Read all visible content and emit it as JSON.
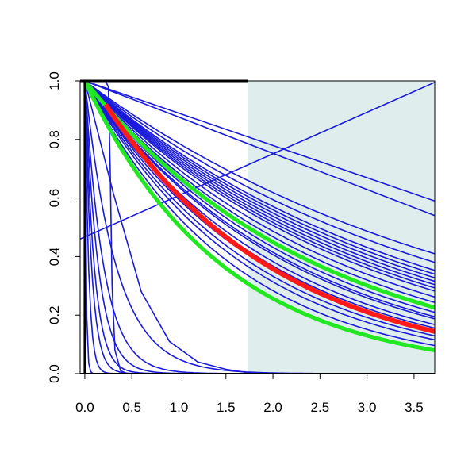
{
  "chart_data": {
    "type": "line",
    "title": "",
    "xlabel": "",
    "ylabel": "",
    "xlim": [
      -0.05,
      3.72
    ],
    "ylim": [
      0.0,
      1.0
    ],
    "x_ticks": [
      "0.0",
      "0.5",
      "1.0",
      "1.5",
      "2.0",
      "2.5",
      "3.0",
      "3.5"
    ],
    "y_ticks": [
      "0.0",
      "0.2",
      "0.4",
      "0.6",
      "0.8",
      "1.0"
    ],
    "grid": false,
    "legend": "none",
    "shaded_region": {
      "x_start": 1.73,
      "x_end": 3.72,
      "color": "#e0eded"
    },
    "colors": {
      "curves": "#1a1adb",
      "highlight": "#ff1a1a",
      "band": "#22e822",
      "axis": "#000000"
    },
    "curves": [
      {
        "kind": "exp",
        "rate": 0.24
      },
      {
        "kind": "exp",
        "rate": 0.26
      },
      {
        "kind": "exp",
        "rate": 0.28
      },
      {
        "kind": "exp",
        "rate": 0.29
      },
      {
        "kind": "exp",
        "rate": 0.3
      },
      {
        "kind": "exp",
        "rate": 0.31
      },
      {
        "kind": "exp",
        "rate": 0.32
      },
      {
        "kind": "exp",
        "rate": 0.33
      },
      {
        "kind": "exp",
        "rate": 0.34
      },
      {
        "kind": "exp",
        "rate": 0.36
      },
      {
        "kind": "exp",
        "rate": 0.38
      },
      {
        "kind": "exp",
        "rate": 0.4
      },
      {
        "kind": "exp",
        "rate": 0.42
      },
      {
        "kind": "exp",
        "rate": 0.44
      },
      {
        "kind": "exp",
        "rate": 0.45
      },
      {
        "kind": "exp",
        "rate": 0.48
      },
      {
        "kind": "exp",
        "rate": 0.5
      },
      {
        "kind": "exp",
        "rate": 0.52
      },
      {
        "kind": "exp",
        "rate": 0.55
      },
      {
        "kind": "exp",
        "rate": 0.58
      },
      {
        "kind": "exp",
        "rate": 0.63
      },
      {
        "kind": "exp",
        "rate": 0.68
      },
      {
        "kind": "exp",
        "rate": 3.0
      },
      {
        "kind": "exp",
        "rate": 5.0
      },
      {
        "kind": "exp",
        "rate": 7.0
      },
      {
        "kind": "exp",
        "rate": 10.0
      },
      {
        "kind": "exp",
        "rate": 14.0
      },
      {
        "kind": "exp",
        "rate": 25.0
      },
      {
        "kind": "exp",
        "rate": 80.0
      },
      {
        "kind": "points",
        "x": [
          0,
          0.3,
          0.6,
          0.9,
          1.2,
          1.5,
          1.8
        ],
        "y": [
          1.0,
          0.62,
          0.28,
          0.11,
          0.04,
          0.015,
          0.0
        ]
      },
      {
        "kind": "points",
        "x": [
          0.0,
          0.05,
          0.22,
          0.25,
          0.27,
          0.29,
          0.32,
          0.38,
          0.45,
          3.72
        ],
        "y": [
          1.0,
          1.0,
          1.0,
          0.98,
          0.7,
          0.3,
          0.08,
          0.01,
          0.0,
          0.0
        ]
      },
      {
        "kind": "points",
        "x": [
          0,
          3.72
        ],
        "y": [
          1.0,
          0.59
        ]
      },
      {
        "kind": "points",
        "x": [
          0,
          3.72
        ],
        "y": [
          1.0,
          0.54
        ]
      },
      {
        "kind": "points",
        "x": [
          -0.05,
          3.72
        ],
        "y": [
          0.46,
          0.995
        ]
      }
    ],
    "highlight_series": [
      {
        "kind": "exp",
        "rate": 0.53,
        "start": 0.22,
        "start_y": 0.92
      }
    ],
    "band_series": [
      {
        "kind": "exp",
        "rate": 0.4
      },
      {
        "kind": "exp",
        "rate": 0.68
      }
    ]
  }
}
